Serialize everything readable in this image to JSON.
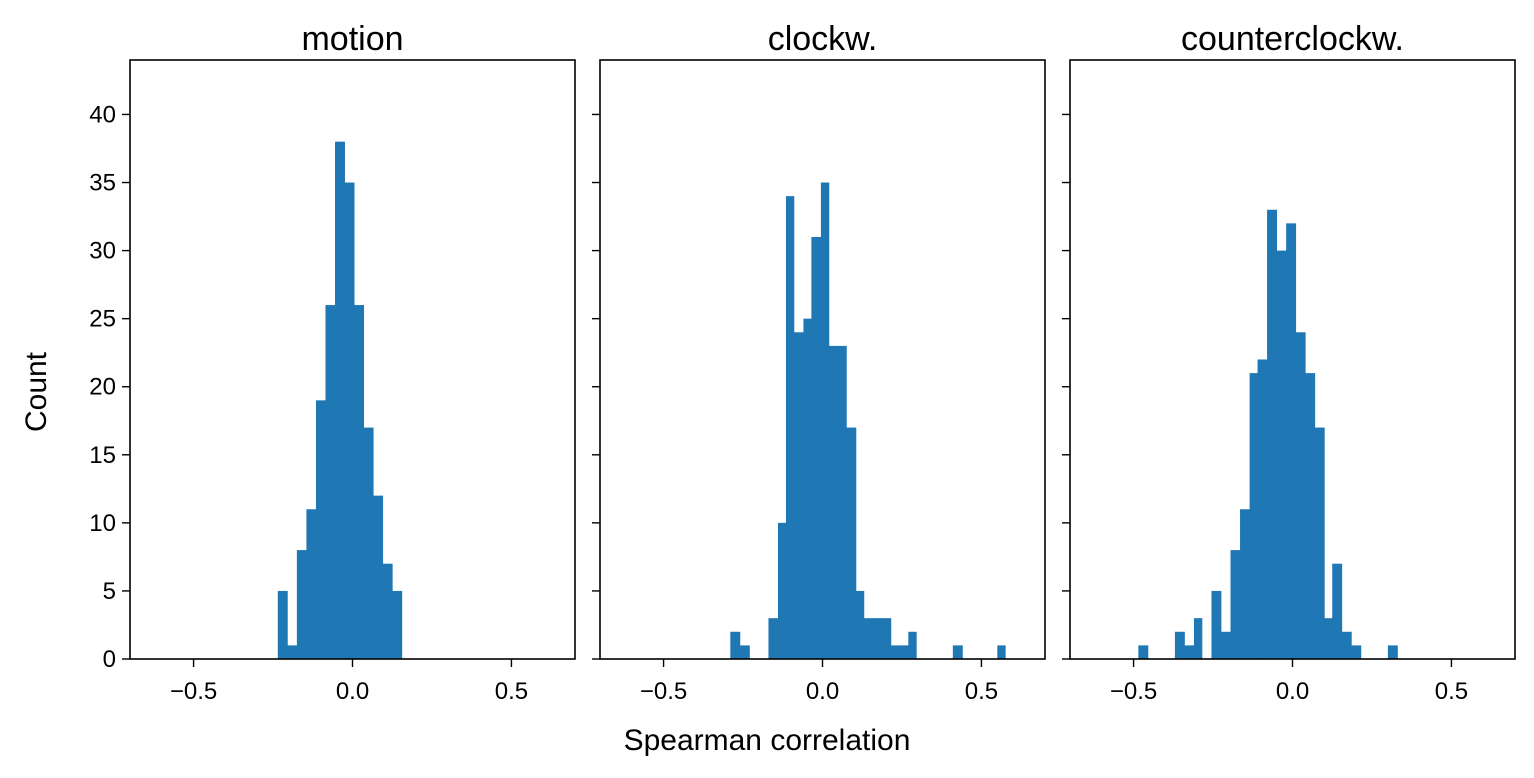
{
  "figure": {
    "xlabel": "Spearman correlation",
    "ylabel": "Count",
    "bar_color": "#1f77b4"
  },
  "chart_data": [
    {
      "type": "bar",
      "title": "motion",
      "xlim": [
        -0.7,
        0.7
      ],
      "ylim": [
        0,
        44
      ],
      "xticks": [
        -0.5,
        0.0,
        0.5
      ],
      "xtick_labels": [
        "−0.5",
        "0.0",
        "0.5"
      ],
      "yticks": [
        0,
        5,
        10,
        15,
        20,
        25,
        30,
        35,
        40
      ],
      "ytick_labels": [
        "0",
        "5",
        "10",
        "15",
        "20",
        "25",
        "30",
        "35",
        "40"
      ],
      "bins": [
        {
          "x0": -0.235,
          "x1": -0.205,
          "count": 5
        },
        {
          "x0": -0.205,
          "x1": -0.175,
          "count": 1
        },
        {
          "x0": -0.175,
          "x1": -0.145,
          "count": 8
        },
        {
          "x0": -0.145,
          "x1": -0.115,
          "count": 11
        },
        {
          "x0": -0.115,
          "x1": -0.085,
          "count": 19
        },
        {
          "x0": -0.085,
          "x1": -0.055,
          "count": 26
        },
        {
          "x0": -0.055,
          "x1": -0.025,
          "count": 38
        },
        {
          "x0": -0.025,
          "x1": 0.005,
          "count": 35
        },
        {
          "x0": 0.005,
          "x1": 0.035,
          "count": 26
        },
        {
          "x0": 0.035,
          "x1": 0.065,
          "count": 17
        },
        {
          "x0": 0.065,
          "x1": 0.095,
          "count": 12
        },
        {
          "x0": 0.095,
          "x1": 0.125,
          "count": 7
        },
        {
          "x0": 0.125,
          "x1": 0.155,
          "count": 5
        }
      ]
    },
    {
      "type": "bar",
      "title": "clockw.",
      "xlim": [
        -0.7,
        0.7
      ],
      "ylim": [
        0,
        44
      ],
      "xticks": [
        -0.5,
        0.0,
        0.5
      ],
      "xtick_labels": [
        "−0.5",
        "0.0",
        "0.5"
      ],
      "yticks": [
        0,
        5,
        10,
        15,
        20,
        25,
        30,
        35,
        40
      ],
      "ytick_labels": [
        "",
        "",
        "",
        "",
        "",
        "",
        "",
        "",
        ""
      ],
      "bins": [
        {
          "x0": -0.29,
          "x1": -0.26,
          "count": 2
        },
        {
          "x0": -0.26,
          "x1": -0.23,
          "count": 1
        },
        {
          "x0": -0.17,
          "x1": -0.14,
          "count": 3
        },
        {
          "x0": -0.14,
          "x1": -0.115,
          "count": 10
        },
        {
          "x0": -0.115,
          "x1": -0.09,
          "count": 34
        },
        {
          "x0": -0.09,
          "x1": -0.06,
          "count": 24
        },
        {
          "x0": -0.06,
          "x1": -0.035,
          "count": 25
        },
        {
          "x0": -0.035,
          "x1": -0.005,
          "count": 31
        },
        {
          "x0": -0.005,
          "x1": 0.02,
          "count": 35
        },
        {
          "x0": 0.02,
          "x1": 0.05,
          "count": 23
        },
        {
          "x0": 0.05,
          "x1": 0.075,
          "count": 23
        },
        {
          "x0": 0.075,
          "x1": 0.105,
          "count": 17
        },
        {
          "x0": 0.105,
          "x1": 0.13,
          "count": 5
        },
        {
          "x0": 0.13,
          "x1": 0.16,
          "count": 3
        },
        {
          "x0": 0.16,
          "x1": 0.185,
          "count": 3
        },
        {
          "x0": 0.185,
          "x1": 0.215,
          "count": 3
        },
        {
          "x0": 0.215,
          "x1": 0.24,
          "count": 1
        },
        {
          "x0": 0.24,
          "x1": 0.27,
          "count": 1
        },
        {
          "x0": 0.27,
          "x1": 0.295,
          "count": 2
        },
        {
          "x0": 0.41,
          "x1": 0.44,
          "count": 1
        },
        {
          "x0": 0.55,
          "x1": 0.575,
          "count": 1
        }
      ]
    },
    {
      "type": "bar",
      "title": "counterclockw.",
      "xlim": [
        -0.7,
        0.7
      ],
      "ylim": [
        0,
        44
      ],
      "xticks": [
        -0.5,
        0.0,
        0.5
      ],
      "xtick_labels": [
        "−0.5",
        "0.0",
        "0.5"
      ],
      "yticks": [
        0,
        5,
        10,
        15,
        20,
        25,
        30,
        35,
        40
      ],
      "ytick_labels": [
        "",
        "",
        "",
        "",
        "",
        "",
        "",
        "",
        ""
      ],
      "bins": [
        {
          "x0": -0.485,
          "x1": -0.455,
          "count": 1
        },
        {
          "x0": -0.37,
          "x1": -0.34,
          "count": 2
        },
        {
          "x0": -0.34,
          "x1": -0.31,
          "count": 1
        },
        {
          "x0": -0.31,
          "x1": -0.285,
          "count": 3
        },
        {
          "x0": -0.255,
          "x1": -0.225,
          "count": 5
        },
        {
          "x0": -0.225,
          "x1": -0.195,
          "count": 2
        },
        {
          "x0": -0.195,
          "x1": -0.165,
          "count": 8
        },
        {
          "x0": -0.165,
          "x1": -0.135,
          "count": 11
        },
        {
          "x0": -0.135,
          "x1": -0.11,
          "count": 21
        },
        {
          "x0": -0.11,
          "x1": -0.08,
          "count": 22
        },
        {
          "x0": -0.08,
          "x1": -0.05,
          "count": 33
        },
        {
          "x0": -0.05,
          "x1": -0.02,
          "count": 30
        },
        {
          "x0": -0.02,
          "x1": 0.01,
          "count": 32
        },
        {
          "x0": 0.01,
          "x1": 0.04,
          "count": 24
        },
        {
          "x0": 0.04,
          "x1": 0.07,
          "count": 21
        },
        {
          "x0": 0.07,
          "x1": 0.1,
          "count": 17
        },
        {
          "x0": 0.1,
          "x1": 0.125,
          "count": 3
        },
        {
          "x0": 0.125,
          "x1": 0.155,
          "count": 7
        },
        {
          "x0": 0.155,
          "x1": 0.185,
          "count": 2
        },
        {
          "x0": 0.185,
          "x1": 0.215,
          "count": 1
        },
        {
          "x0": 0.3,
          "x1": 0.33,
          "count": 1
        }
      ]
    }
  ]
}
